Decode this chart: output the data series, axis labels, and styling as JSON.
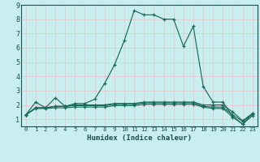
{
  "title": "",
  "xlabel": "Humidex (Indice chaleur)",
  "bg_color": "#c8eef0",
  "grid_color": "#e8c8c8",
  "line_color": "#1a6b5a",
  "xlim": [
    -0.5,
    23.5
  ],
  "ylim": [
    0.5,
    9.0
  ],
  "xticks": [
    0,
    1,
    2,
    3,
    4,
    5,
    6,
    7,
    8,
    9,
    10,
    11,
    12,
    13,
    14,
    15,
    16,
    17,
    18,
    19,
    20,
    21,
    22,
    23
  ],
  "yticks": [
    1,
    2,
    3,
    4,
    5,
    6,
    7,
    8,
    9
  ],
  "series": [
    [
      1.3,
      2.2,
      1.8,
      2.5,
      1.9,
      2.1,
      2.1,
      2.4,
      3.5,
      4.8,
      6.5,
      8.6,
      8.3,
      8.3,
      8.0,
      8.0,
      6.1,
      7.5,
      3.3,
      2.2,
      2.2,
      1.2,
      0.65,
      1.4
    ],
    [
      1.3,
      1.8,
      1.8,
      1.9,
      1.9,
      2.0,
      2.0,
      2.0,
      2.0,
      2.1,
      2.1,
      2.1,
      2.2,
      2.2,
      2.2,
      2.2,
      2.2,
      2.2,
      2.0,
      2.0,
      2.0,
      1.5,
      0.9,
      1.4
    ],
    [
      1.3,
      1.8,
      1.8,
      1.9,
      1.9,
      1.95,
      1.95,
      1.95,
      1.95,
      2.05,
      2.05,
      2.05,
      2.15,
      2.15,
      2.15,
      2.15,
      2.15,
      2.15,
      1.9,
      1.85,
      1.85,
      1.3,
      0.85,
      1.35
    ],
    [
      1.3,
      1.75,
      1.75,
      1.8,
      1.8,
      1.85,
      1.85,
      1.85,
      1.85,
      1.95,
      1.95,
      1.95,
      2.05,
      2.05,
      2.05,
      2.05,
      2.05,
      2.05,
      1.85,
      1.75,
      1.75,
      1.15,
      0.65,
      1.25
    ]
  ]
}
